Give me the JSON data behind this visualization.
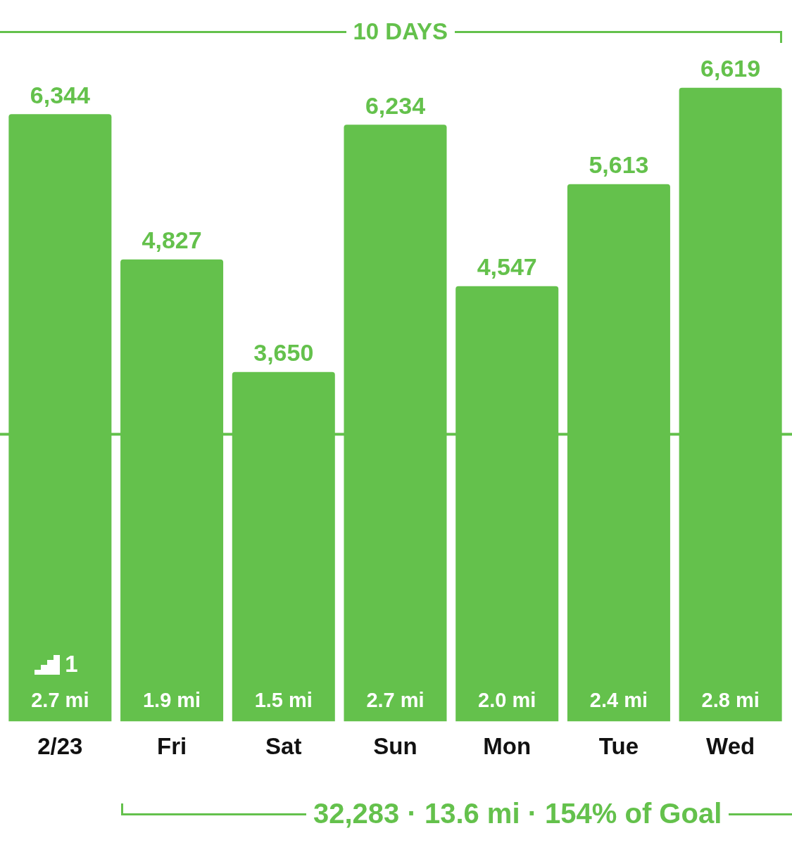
{
  "chart_data": {
    "type": "bar",
    "categories": [
      "2/23",
      "Fri",
      "Sat",
      "Sun",
      "Mon",
      "Tue",
      "Wed"
    ],
    "values": [
      6344,
      4827,
      3650,
      6234,
      4547,
      5613,
      6619
    ],
    "color": "#64c14c",
    "value_labels": [
      "6,344",
      "4,827",
      "3,650",
      "6,234",
      "4,547",
      "5,613",
      "6,619"
    ],
    "ref_lines": [
      {
        "axis": "y",
        "value": 3000,
        "color": "#64c14c"
      }
    ],
    "annotations": [
      "10 DAYS",
      "32,283 · 13.6 mi · 154% of Goal",
      "1",
      "2.7 mi",
      "1.9 mi",
      "1.5 mi",
      "2.7 mi",
      "2.0 mi",
      "2.4 mi",
      "2.8 mi"
    ],
    "grid": false,
    "legend": false
  }
}
